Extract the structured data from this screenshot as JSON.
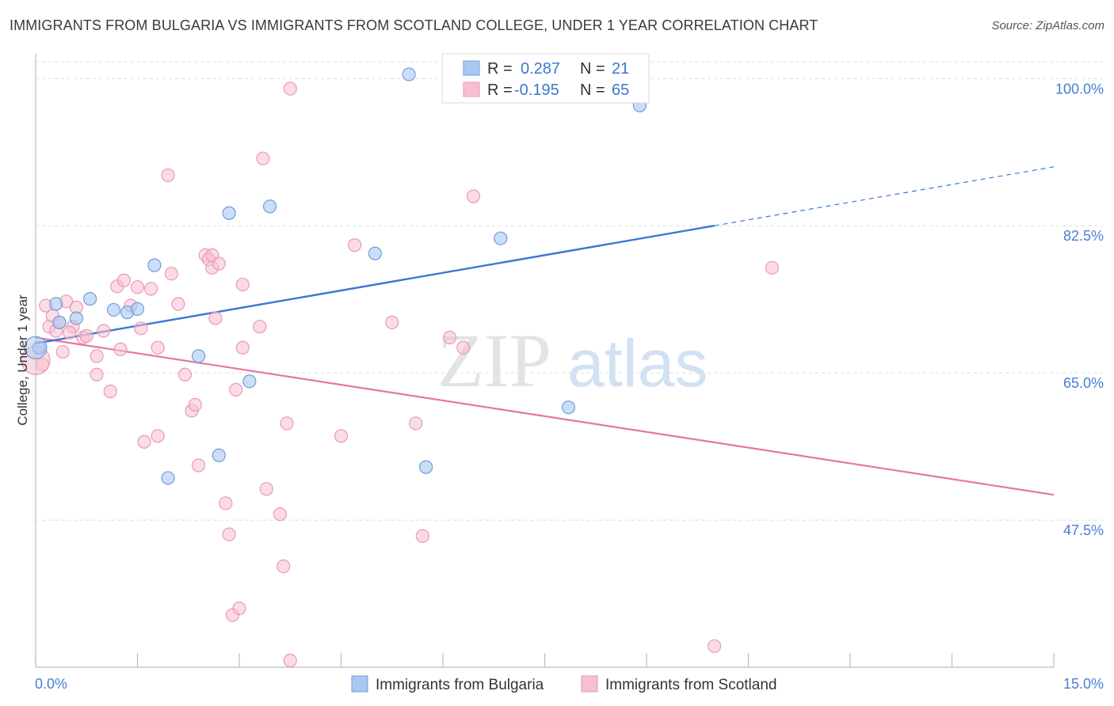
{
  "title": "IMMIGRANTS FROM BULGARIA VS IMMIGRANTS FROM SCOTLAND COLLEGE, UNDER 1 YEAR CORRELATION CHART",
  "source": "Source: ZipAtlas.com",
  "watermark": {
    "zip": "ZIP",
    "atlas": "atlas"
  },
  "legend": {
    "r_label": "R =",
    "n_label": "N =",
    "entries": [
      {
        "r": "0.287",
        "n": "21"
      },
      {
        "r": "-0.195",
        "n": "65"
      }
    ]
  },
  "colors": {
    "blue_fill": "#a9c8f0",
    "blue_stroke": "#6f9fdc",
    "blue_line": "#3a78d0",
    "pink_fill": "#f7bfd0",
    "pink_stroke": "#e99ab4",
    "pink_line": "#e8769b",
    "axis_label": "#4a7ed1",
    "grid": "#dcdcdc"
  },
  "chart_data": {
    "type": "scatter",
    "xlabel": "",
    "ylabel": "College, Under 1 year",
    "xlim": [
      0.0,
      15.0
    ],
    "ylim": [
      30.0,
      102.0
    ],
    "x_tick_labels": [
      "0.0%",
      "15.0%"
    ],
    "y_ticks": [
      47.5,
      65.0,
      82.5,
      100.0
    ],
    "y_tick_labels": [
      "47.5%",
      "65.0%",
      "82.5%",
      "100.0%"
    ],
    "grid": true,
    "bottom_legend": [
      "Immigrants from Bulgaria",
      "Immigrants from Scotland"
    ],
    "series": [
      {
        "name": "Immigrants from Bulgaria",
        "color": "#6f9fdc",
        "points": [
          [
            0.05,
            68.0
          ],
          [
            0.3,
            73.2
          ],
          [
            0.35,
            71.0
          ],
          [
            0.6,
            71.5
          ],
          [
            0.8,
            73.8
          ],
          [
            1.15,
            72.5
          ],
          [
            1.35,
            72.2
          ],
          [
            1.5,
            72.6
          ],
          [
            1.75,
            77.8
          ],
          [
            2.4,
            67.0
          ],
          [
            2.85,
            84.0
          ],
          [
            3.15,
            64.0
          ],
          [
            3.45,
            84.8
          ],
          [
            2.7,
            55.2
          ],
          [
            1.95,
            52.5
          ],
          [
            5.0,
            79.2
          ],
          [
            5.75,
            53.8
          ],
          [
            5.5,
            100.5
          ],
          [
            6.85,
            81.0
          ],
          [
            7.85,
            60.9
          ],
          [
            8.9,
            96.8
          ]
        ],
        "trend": {
          "x0": 0.0,
          "y0": 68.5,
          "x1": 10.0,
          "y1": 82.5,
          "dashed_to_x": 15.0,
          "dashed_to_y": 89.5
        }
      },
      {
        "name": "Immigrants from Scotland",
        "color": "#e99ab4",
        "points": [
          [
            0.1,
            66.0
          ],
          [
            0.2,
            70.5
          ],
          [
            0.3,
            70.0
          ],
          [
            0.35,
            71.0
          ],
          [
            0.4,
            67.5
          ],
          [
            0.55,
            70.5
          ],
          [
            0.6,
            72.8
          ],
          [
            0.7,
            69.2
          ],
          [
            0.75,
            69.4
          ],
          [
            0.9,
            64.8
          ],
          [
            0.9,
            67.0
          ],
          [
            1.0,
            70.0
          ],
          [
            1.1,
            62.8
          ],
          [
            1.2,
            75.3
          ],
          [
            1.3,
            76.0
          ],
          [
            1.4,
            73.0
          ],
          [
            1.5,
            75.2
          ],
          [
            1.55,
            70.3
          ],
          [
            1.6,
            56.8
          ],
          [
            1.7,
            75.0
          ],
          [
            1.8,
            57.5
          ],
          [
            1.8,
            68.0
          ],
          [
            1.95,
            88.5
          ],
          [
            2.0,
            76.8
          ],
          [
            2.1,
            73.2
          ],
          [
            2.2,
            64.8
          ],
          [
            2.3,
            60.5
          ],
          [
            2.35,
            61.2
          ],
          [
            2.4,
            54.0
          ],
          [
            2.5,
            79.0
          ],
          [
            2.55,
            78.5
          ],
          [
            2.6,
            79.0
          ],
          [
            2.6,
            77.5
          ],
          [
            2.65,
            71.5
          ],
          [
            2.7,
            78.0
          ],
          [
            2.8,
            49.5
          ],
          [
            2.85,
            45.8
          ],
          [
            2.9,
            36.2
          ],
          [
            2.95,
            63.0
          ],
          [
            3.0,
            37.0
          ],
          [
            3.05,
            75.5
          ],
          [
            3.05,
            68.0
          ],
          [
            3.3,
            70.5
          ],
          [
            3.35,
            90.5
          ],
          [
            3.4,
            51.2
          ],
          [
            3.6,
            48.2
          ],
          [
            3.65,
            42.0
          ],
          [
            3.7,
            59.0
          ],
          [
            3.75,
            98.8
          ],
          [
            3.75,
            30.8
          ],
          [
            4.5,
            57.5
          ],
          [
            4.7,
            80.2
          ],
          [
            5.25,
            71.0
          ],
          [
            5.6,
            59.0
          ],
          [
            5.7,
            45.6
          ],
          [
            6.1,
            69.2
          ],
          [
            6.3,
            68.0
          ],
          [
            6.45,
            86.0
          ],
          [
            10.85,
            77.5
          ],
          [
            10.0,
            32.5
          ],
          [
            0.15,
            73.0
          ],
          [
            0.25,
            71.8
          ],
          [
            0.45,
            73.5
          ],
          [
            0.5,
            69.8
          ],
          [
            1.25,
            67.8
          ]
        ],
        "trend": {
          "x0": 0.0,
          "y0": 69.2,
          "x1": 15.0,
          "y1": 50.5
        }
      }
    ]
  }
}
